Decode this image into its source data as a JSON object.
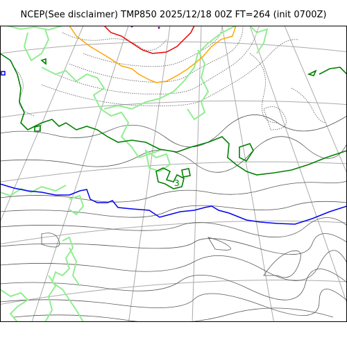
{
  "title": "NCEP(See disclaimer) TMP850 2025/12/18 00Z FT=264 (init 0700Z)",
  "contour_label": "3",
  "colors": {
    "background": "#ffffff",
    "frame": "#000000",
    "graticule": "#aaaaaa",
    "isotherm_thin": "#555555",
    "isotherm_light_green": "#90ee90",
    "isotherm_green": "#008000",
    "isotherm_blue": "#0000ee",
    "isotherm_orange": "#ffa500",
    "isotherm_red": "#ee0000"
  }
}
